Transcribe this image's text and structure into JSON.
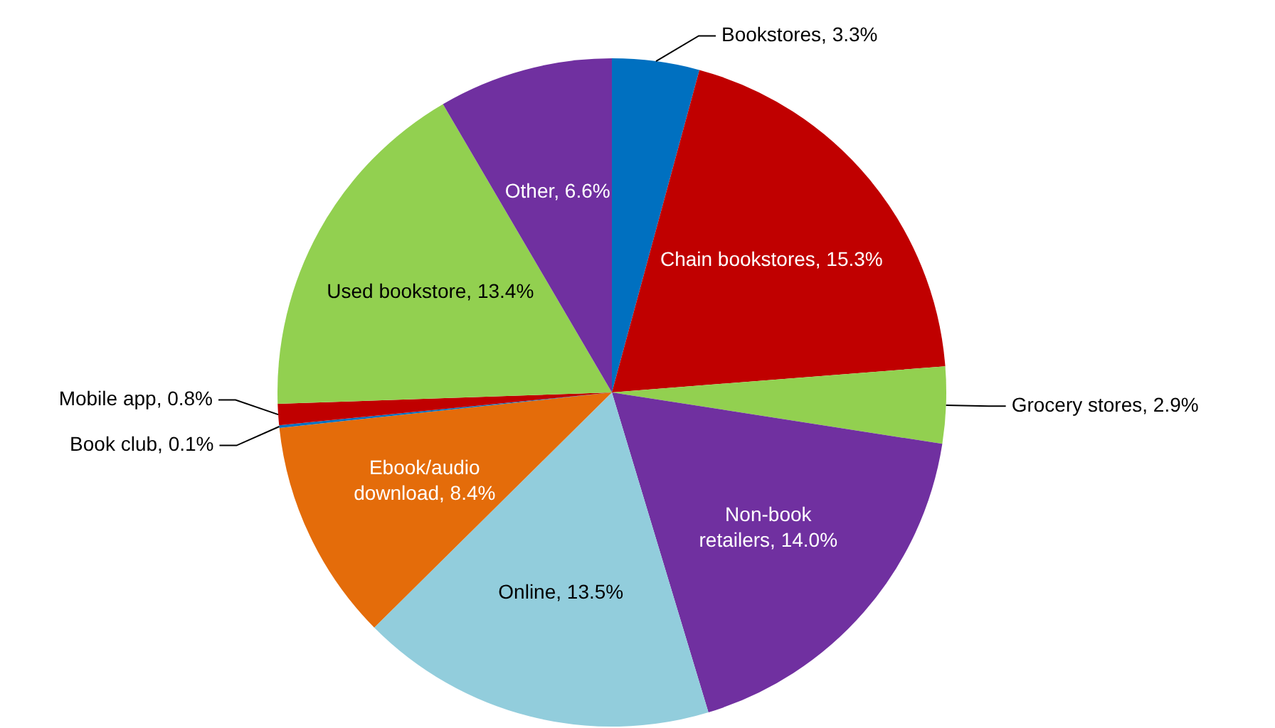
{
  "chart_data": {
    "type": "pie",
    "categories": [
      "Bookstores",
      "Chain bookstores",
      "Grocery stores",
      "Non-book retailers",
      "Online",
      "Ebook/audio download",
      "Book club",
      "Mobile app",
      "Used bookstore",
      "Other"
    ],
    "values": [
      3.3,
      15.3,
      2.9,
      14.0,
      13.5,
      8.4,
      0.1,
      0.8,
      13.4,
      6.6
    ],
    "value_labels": [
      "3.3%",
      "15.3%",
      "2.9%",
      "14.0%",
      "13.5%",
      "8.4%",
      "0.1%",
      "0.8%",
      "13.4%",
      "6.6%"
    ],
    "colors": [
      "#0070c0",
      "#c00000",
      "#92d050",
      "#7030a0",
      "#92cddc",
      "#e46c0a",
      "#0070c0",
      "#c00000",
      "#92d050",
      "#7030a0"
    ],
    "legend": false
  }
}
